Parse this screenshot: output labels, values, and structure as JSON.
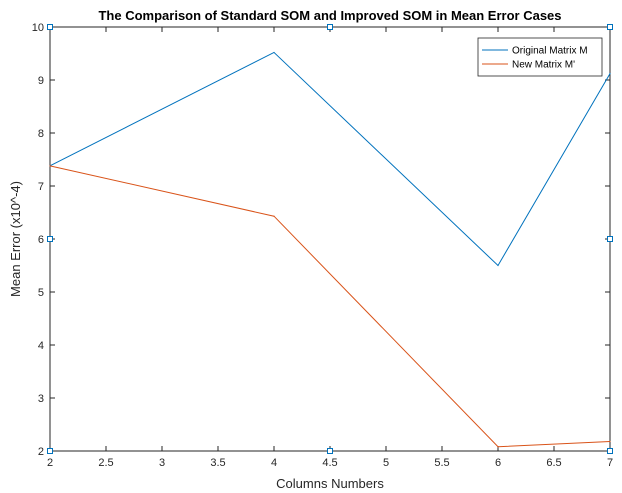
{
  "chart_data": {
    "type": "line",
    "title": "The Comparison of Standard SOM and Improved SOM in Mean Error Cases",
    "xlabel": "Columns Numbers",
    "ylabel": "Mean Error (x10^-4)",
    "xlim": [
      2,
      7
    ],
    "ylim": [
      2,
      10
    ],
    "xticks": [
      "2",
      "2.5",
      "3",
      "3.5",
      "4",
      "4.5",
      "5",
      "5.5",
      "6",
      "6.5",
      "7"
    ],
    "yticks": [
      "2",
      "3",
      "4",
      "5",
      "6",
      "7",
      "8",
      "9",
      "10"
    ],
    "grid": false,
    "legend_position": "top-right",
    "x": [
      2,
      4,
      6,
      7
    ],
    "series": [
      {
        "name": "Original Matrix M",
        "values": [
          7.38,
          9.52,
          5.5,
          9.12
        ],
        "color": "#0072BD"
      },
      {
        "name": "New Matrix M'",
        "values": [
          7.38,
          6.43,
          2.08,
          2.18
        ],
        "color": "#D95319"
      }
    ],
    "markers_color": "#0072BD"
  }
}
